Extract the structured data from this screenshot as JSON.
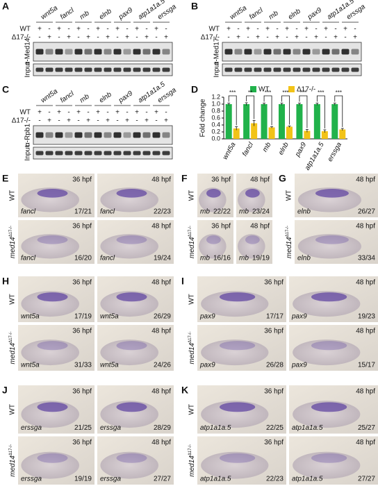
{
  "gels": [
    {
      "label": "A",
      "genes": [
        "wnt5a",
        "fancl",
        "mb",
        "elnb",
        "pax9",
        "atp1a1a.5",
        "erssga"
      ],
      "wt_label": "WT",
      "mut_label": "Δ17-/-",
      "wt": [
        "+",
        "-",
        "+",
        "-",
        "+",
        "-",
        "+",
        "-",
        "+",
        "-",
        "+",
        "-",
        "+",
        "-"
      ],
      "mut": [
        "-",
        "+",
        "-",
        "+",
        "-",
        "+",
        "-",
        "+",
        "-",
        "+",
        "-",
        "+",
        "-",
        "+"
      ],
      "rows": [
        "α-Med14",
        "Input"
      ]
    },
    {
      "label": "B",
      "genes": [
        "wnt5a",
        "fancl",
        "mb",
        "elnb",
        "pax9",
        "atp1a1a.5",
        "erssga"
      ],
      "wt_label": "WT",
      "mut_label": "Δ17-/-",
      "wt": [
        "+",
        "-",
        "+",
        "-",
        "+",
        "-",
        "+",
        "-",
        "+",
        "-",
        "+",
        "-",
        "+",
        "-"
      ],
      "mut": [
        "-",
        "+",
        "-",
        "+",
        "-",
        "+",
        "-",
        "+",
        "-",
        "+",
        "-",
        "+",
        "-",
        "+"
      ],
      "rows": [
        "α-Med17",
        "Input"
      ]
    },
    {
      "label": "C",
      "genes": [
        "wnt5a",
        "fancl",
        "mb",
        "elnb",
        "pax9",
        "atp1a1a.5",
        "erssga"
      ],
      "wt_label": "WT",
      "mut_label": "Δ17-/-",
      "wt": [
        "+",
        "-",
        "+",
        "-",
        "+",
        "-",
        "+",
        "-",
        "+",
        "-",
        "+",
        "-",
        "+",
        "-"
      ],
      "mut": [
        "-",
        "+",
        "-",
        "+",
        "-",
        "+",
        "-",
        "+",
        "-",
        "+",
        "-",
        "+",
        "-",
        "+"
      ],
      "rows": [
        "α-Rpb1",
        "Input"
      ]
    }
  ],
  "chart_data": {
    "type": "bar",
    "panel_label": "D",
    "ylabel": "Fold change",
    "categories": [
      "wnt5a",
      "fancl",
      "mb",
      "elnb",
      "pax9",
      "atp1a1a.5",
      "erssga"
    ],
    "series": [
      {
        "name": "WT",
        "color": "#21b24b",
        "values": [
          1.0,
          1.0,
          1.0,
          1.0,
          1.0,
          1.0,
          1.0
        ],
        "errors": [
          0.03,
          0.04,
          0.03,
          0.03,
          0.03,
          0.03,
          0.03
        ]
      },
      {
        "name": "Δ17-/-",
        "color": "#f2c318",
        "values": [
          0.3,
          0.45,
          0.33,
          0.35,
          0.23,
          0.22,
          0.27
        ],
        "errors": [
          0.05,
          0.08,
          0.02,
          0.02,
          0.04,
          0.04,
          0.03
        ]
      }
    ],
    "significance": [
      "***",
      "**",
      "***",
      "***",
      "***",
      "***",
      "***"
    ],
    "ylim": [
      0,
      1.2
    ],
    "yticks": [
      {
        "value": 0,
        "label": "0.0"
      },
      {
        "value": 0.2,
        "label": "0.2"
      },
      {
        "value": 0.4,
        "label": "0.4"
      },
      {
        "value": 0.6,
        "label": "0.6"
      },
      {
        "value": 0.8,
        "label": "0.8"
      },
      {
        "value": 1.0,
        "label": "1.0"
      },
      {
        "value": 1.2,
        "label": "1.2"
      }
    ]
  },
  "embryo_panels": [
    {
      "label": "E",
      "rows": [
        {
          "text": "WT"
        },
        {
          "gene": "med14",
          "allele": "Δ17-/-"
        }
      ],
      "images": [
        {
          "time": "36 hpf",
          "gene": "fancl",
          "count": "17/21"
        },
        {
          "time": "48 hpf",
          "gene": "fancl",
          "count": "22/23"
        },
        {
          "time": "36 hpf",
          "gene": "fancl",
          "count": "16/20"
        },
        {
          "time": "48 hpf",
          "gene": "fancl",
          "count": "19/24"
        }
      ]
    },
    {
      "label": "F",
      "rows": [
        {
          "text": "WT"
        },
        {
          "gene": "med14",
          "allele": "Δ17-/-"
        }
      ],
      "images": [
        {
          "time": "36 hpf",
          "gene": "mb",
          "count": "22/22"
        },
        {
          "time": "48 hpf",
          "gene": "mb",
          "count": "23/24"
        },
        {
          "time": "36 hpf",
          "gene": "mb",
          "count": "16/16"
        },
        {
          "time": "48 hpf",
          "gene": "mb",
          "count": "19/19"
        }
      ]
    },
    {
      "label": "G",
      "rows": [
        {
          "text": "WT"
        },
        {
          "gene": "med14",
          "allele": "Δ17-/-"
        }
      ],
      "images": [
        {
          "time": "48 hpf",
          "gene": "elnb",
          "count": "26/27"
        },
        {
          "time": "48 hpf",
          "gene": "elnb",
          "count": "33/34"
        }
      ]
    },
    {
      "label": "H",
      "rows": [
        {
          "text": "WT"
        },
        {
          "gene": "med14",
          "allele": "Δ17-/-"
        }
      ],
      "images": [
        {
          "time": "36 hpf",
          "gene": "wnt5a",
          "count": "17/19"
        },
        {
          "time": "48 hpf",
          "gene": "wnt5a",
          "count": "26/29"
        },
        {
          "time": "36 hpf",
          "gene": "wnt5a",
          "count": "31/33"
        },
        {
          "time": "48 hpf",
          "gene": "wnt5a",
          "count": "24/26"
        }
      ]
    },
    {
      "label": "I",
      "rows": [
        {
          "text": "WT"
        },
        {
          "gene": "med14",
          "allele": "Δ17-/-"
        }
      ],
      "images": [
        {
          "time": "36 hpf",
          "gene": "pax9",
          "count": "17/17"
        },
        {
          "time": "48 hpf",
          "gene": "pax9",
          "count": "19/23"
        },
        {
          "time": "36 hpf",
          "gene": "pax9",
          "count": "26/28"
        },
        {
          "time": "48 hpf",
          "gene": "pax9",
          "count": "15/17"
        }
      ]
    },
    {
      "label": "J",
      "rows": [
        {
          "text": "WT"
        },
        {
          "gene": "med14",
          "allele": "Δ17-/-"
        }
      ],
      "images": [
        {
          "time": "36 hpf",
          "gene": "erssga",
          "count": "21/25"
        },
        {
          "time": "48 hpf",
          "gene": "erssga",
          "count": "28/29"
        },
        {
          "time": "36 hpf",
          "gene": "erssga",
          "count": "19/19"
        },
        {
          "time": "48 hpf",
          "gene": "erssga",
          "count": "27/27"
        }
      ]
    },
    {
      "label": "K",
      "rows": [
        {
          "text": "WT"
        },
        {
          "gene": "med14",
          "allele": "Δ17-/-"
        }
      ],
      "images": [
        {
          "time": "36 hpf",
          "gene": "atp1a1a.5",
          "count": "22/25"
        },
        {
          "time": "48 hpf",
          "gene": "atp1a1a.5",
          "count": "25/27"
        },
        {
          "time": "36 hpf",
          "gene": "atp1a1a.5",
          "count": "22/23"
        },
        {
          "time": "48 hpf",
          "gene": "atp1a1a.5",
          "count": "27/27"
        }
      ]
    }
  ]
}
